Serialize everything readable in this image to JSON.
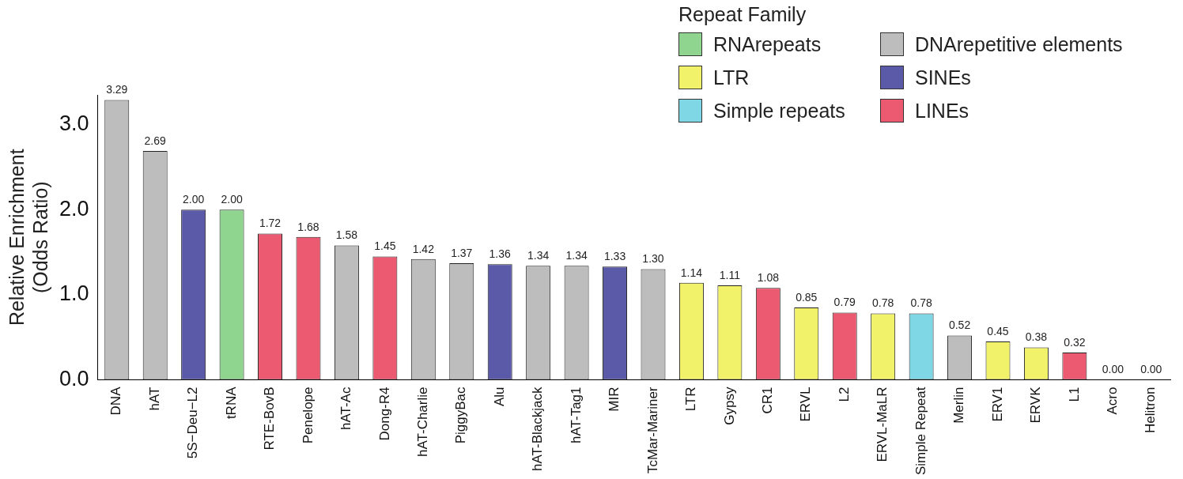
{
  "chart_data": {
    "type": "bar",
    "ylabel": "Relative Enrichment\n(Odds Ratio)",
    "legend_title": "Repeat Family",
    "legend": "top right",
    "grid": false,
    "categories": [
      "DNA",
      "hAT",
      "5S−Deu−L2",
      "tRNA",
      "RTE-BovB",
      "Penelope",
      "hAT-Ac",
      "Dong-R4",
      "hAT-Charlie",
      "PiggyBac",
      "Alu",
      "hAT-Blackjack",
      "hAT-Tag1",
      "MIR",
      "TcMar-Mariner",
      "LTR",
      "Gypsy",
      "CR1",
      "ERVL",
      "L2",
      "ERVL-MaLR",
      "Simple Repeat",
      "Merlin",
      "ERV1",
      "ERVK",
      "L1",
      "Acro",
      "Helitron"
    ],
    "ylim": [
      0,
      3.35
    ],
    "yticks": [
      {
        "value": 0,
        "label": "0.0"
      },
      {
        "value": 1,
        "label": "1.0"
      },
      {
        "value": 2,
        "label": "2.0"
      },
      {
        "value": 3,
        "label": "3.0"
      }
    ],
    "series": [
      {
        "name": "RNArepeats",
        "color": "#8fd48f",
        "values": [
          null,
          null,
          null,
          2.0,
          null,
          null,
          null,
          null,
          null,
          null,
          null,
          null,
          null,
          null,
          null,
          null,
          null,
          null,
          null,
          null,
          null,
          null,
          null,
          null,
          null,
          null,
          null,
          null
        ],
        "value_labels": [
          null,
          null,
          null,
          "2.00",
          null,
          null,
          null,
          null,
          null,
          null,
          null,
          null,
          null,
          null,
          null,
          null,
          null,
          null,
          null,
          null,
          null,
          null,
          null,
          null,
          null,
          null,
          null,
          null
        ]
      },
      {
        "name": "DNArepetitive elements",
        "color": "#bdbdbd",
        "values": [
          3.29,
          2.69,
          null,
          null,
          null,
          null,
          1.58,
          null,
          1.42,
          1.37,
          null,
          1.34,
          1.34,
          null,
          1.3,
          null,
          null,
          null,
          null,
          null,
          null,
          null,
          0.52,
          null,
          null,
          null,
          0.0,
          0.0
        ],
        "value_labels": [
          "3.29",
          "2.69",
          null,
          null,
          null,
          null,
          "1.58",
          null,
          "1.42",
          "1.37",
          null,
          "1.34",
          "1.34",
          null,
          "1.30",
          null,
          null,
          null,
          null,
          null,
          null,
          null,
          "0.52",
          null,
          null,
          null,
          "0.00",
          "0.00"
        ]
      },
      {
        "name": "LTR",
        "color": "#f2f26a",
        "values": [
          null,
          null,
          null,
          null,
          null,
          null,
          null,
          null,
          null,
          null,
          null,
          null,
          null,
          null,
          null,
          1.14,
          1.11,
          null,
          0.85,
          null,
          0.78,
          null,
          null,
          0.45,
          0.38,
          null,
          null,
          null
        ],
        "value_labels": [
          null,
          null,
          null,
          null,
          null,
          null,
          null,
          null,
          null,
          null,
          null,
          null,
          null,
          null,
          null,
          "1.14",
          "1.11",
          null,
          "0.85",
          null,
          "0.78",
          null,
          null,
          "0.45",
          "0.38",
          null,
          null,
          null
        ]
      },
      {
        "name": "SINEs",
        "color": "#5a5aa8",
        "values": [
          null,
          null,
          2.0,
          null,
          null,
          null,
          null,
          null,
          null,
          null,
          1.36,
          null,
          null,
          1.33,
          null,
          null,
          null,
          null,
          null,
          null,
          null,
          null,
          null,
          null,
          null,
          null,
          null,
          null
        ],
        "value_labels": [
          null,
          null,
          "2.00",
          null,
          null,
          null,
          null,
          null,
          null,
          null,
          "1.36",
          null,
          null,
          "1.33",
          null,
          null,
          null,
          null,
          null,
          null,
          null,
          null,
          null,
          null,
          null,
          null,
          null,
          null
        ]
      },
      {
        "name": "Simple repeats",
        "color": "#7fd6e4",
        "values": [
          null,
          null,
          null,
          null,
          null,
          null,
          null,
          null,
          null,
          null,
          null,
          null,
          null,
          null,
          null,
          null,
          null,
          null,
          null,
          null,
          null,
          0.78,
          null,
          null,
          null,
          null,
          null,
          null
        ],
        "value_labels": [
          null,
          null,
          null,
          null,
          null,
          null,
          null,
          null,
          null,
          null,
          null,
          null,
          null,
          null,
          null,
          null,
          null,
          null,
          null,
          null,
          null,
          "0.78",
          null,
          null,
          null,
          null,
          null,
          null
        ]
      },
      {
        "name": "LINEs",
        "color": "#ec5a72",
        "values": [
          null,
          null,
          null,
          null,
          1.72,
          1.68,
          null,
          1.45,
          null,
          null,
          null,
          null,
          null,
          null,
          null,
          null,
          null,
          1.08,
          null,
          0.79,
          null,
          null,
          null,
          null,
          null,
          0.32,
          null,
          null
        ],
        "value_labels": [
          null,
          null,
          null,
          null,
          "1.72",
          "1.68",
          null,
          "1.45",
          null,
          null,
          null,
          null,
          null,
          null,
          null,
          null,
          null,
          "1.08",
          null,
          "0.79",
          null,
          null,
          null,
          null,
          null,
          "0.32",
          null,
          null
        ]
      }
    ]
  }
}
